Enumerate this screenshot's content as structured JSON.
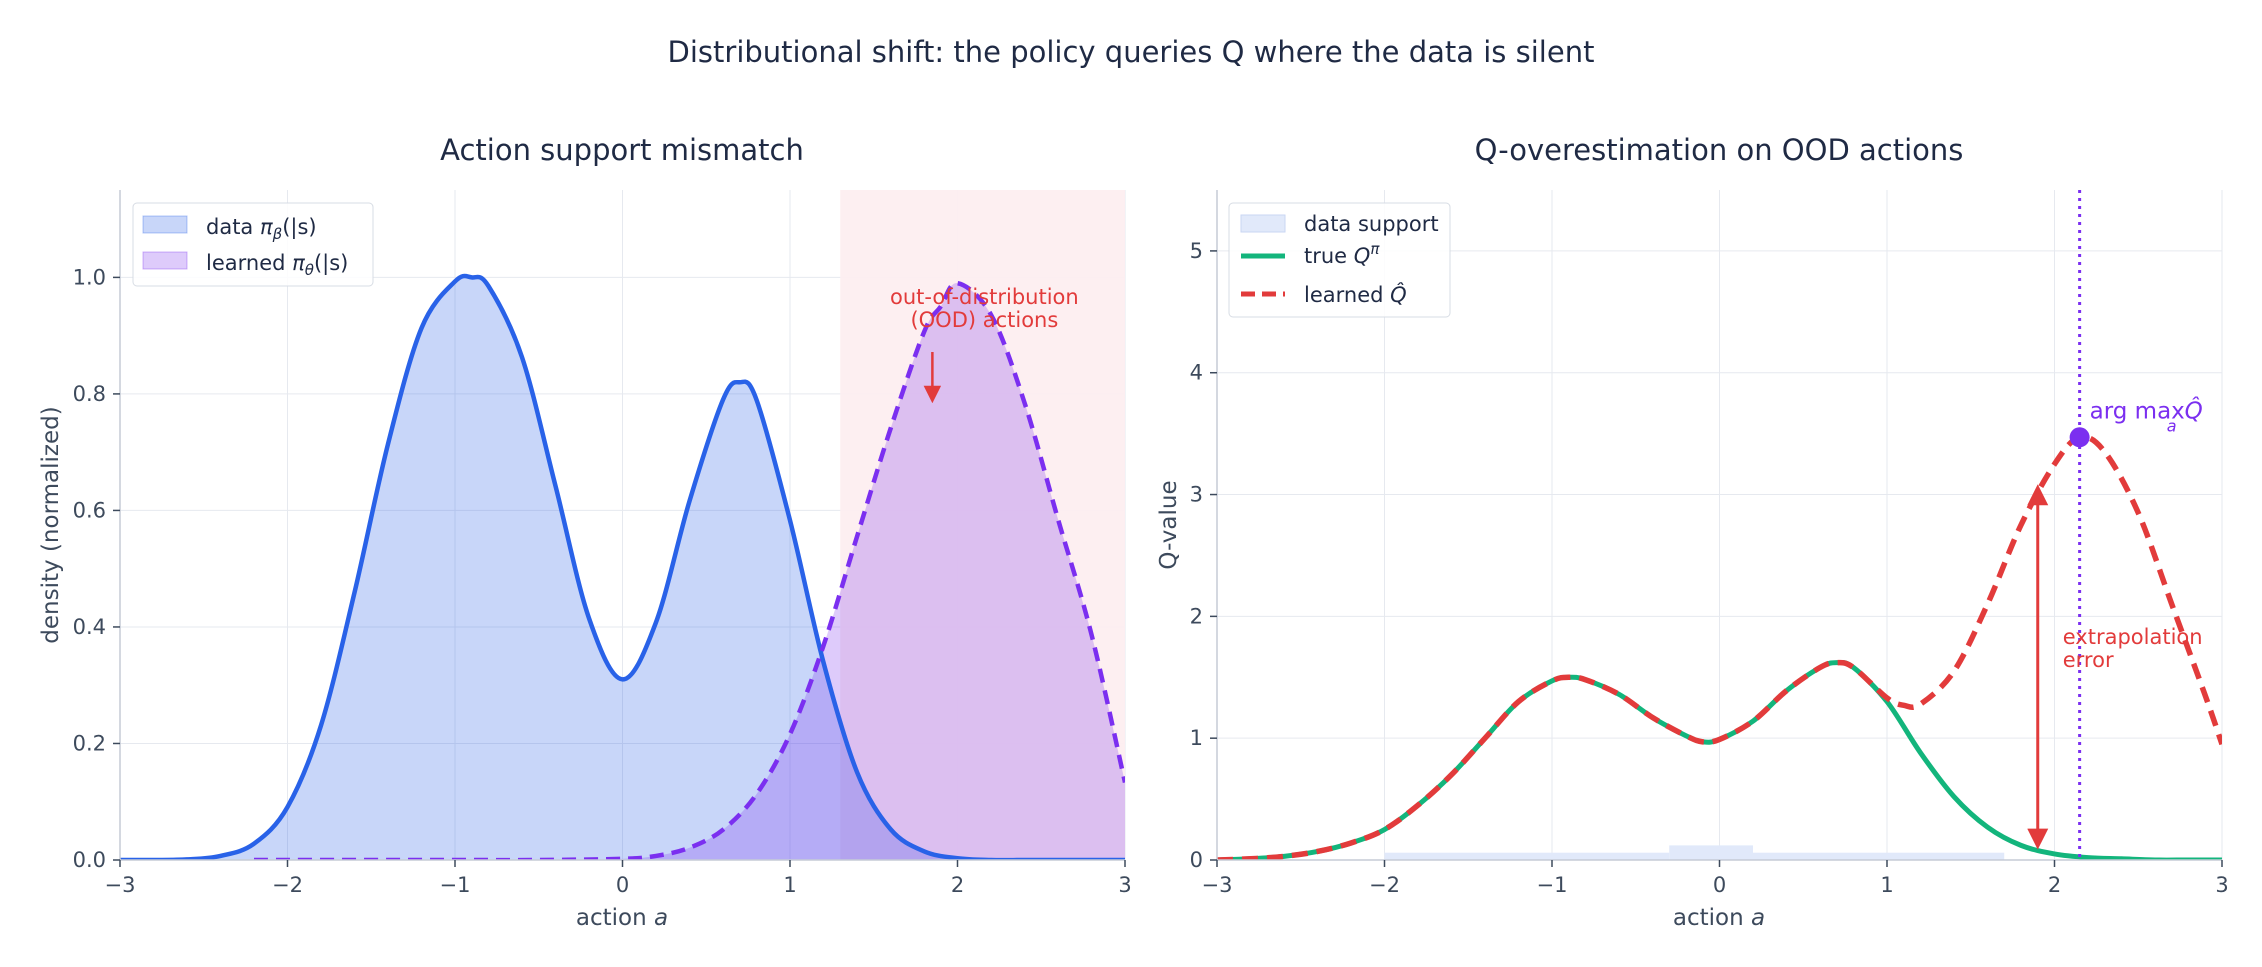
{
  "figure": {
    "title": "Distributional shift: the policy queries Q where the data is silent",
    "colors": {
      "data": "#2962e8",
      "data_fill": "#c7d5f6",
      "learned": "#7b2ff0",
      "learned_fill": "#c9a8ef",
      "ood_region": "#fdeef0",
      "true_q": "#13b57c",
      "learned_q": "#e23b3b",
      "support_fill": "#e1e9fa",
      "argmax": "#7b2ff0"
    }
  },
  "chart_data": [
    {
      "type": "area",
      "title": "Action support mismatch",
      "xlabel": "action a",
      "ylabel": "density (normalized)",
      "xlim": [
        -3,
        3
      ],
      "ylim": [
        0,
        1.15
      ],
      "xticks": [
        -3,
        -2,
        -1,
        0,
        1,
        2,
        3
      ],
      "xtick_labels": [
        "−3",
        "−2",
        "−1",
        "0",
        "1",
        "2",
        "3"
      ],
      "yticks": [
        0,
        0.2,
        0.4,
        0.6,
        0.8,
        1.0
      ],
      "ytick_labels": [
        "0.0",
        "0.2",
        "0.4",
        "0.6",
        "0.8",
        "1.0"
      ],
      "grid": true,
      "legend_placement": "top-left",
      "ood_region": {
        "x_from": 1.3,
        "x_to": 3.0
      },
      "series": [
        {
          "name": "data πβ(a|s)",
          "style": "solid-filled",
          "x": [
            -3.0,
            -2.8,
            -2.6,
            -2.4,
            -2.2,
            -2.0,
            -1.8,
            -1.6,
            -1.4,
            -1.2,
            -1.0,
            -0.9,
            -0.8,
            -0.6,
            -0.4,
            -0.2,
            0.0,
            0.2,
            0.4,
            0.6,
            0.7,
            0.8,
            1.0,
            1.2,
            1.4,
            1.6,
            1.8,
            2.0,
            2.2,
            2.4,
            2.6,
            2.8,
            3.0
          ],
          "y": [
            0.0,
            0.0,
            0.001,
            0.007,
            0.028,
            0.091,
            0.231,
            0.459,
            0.714,
            0.913,
            0.993,
            1.0,
            0.985,
            0.863,
            0.642,
            0.415,
            0.31,
            0.408,
            0.616,
            0.79,
            0.82,
            0.79,
            0.583,
            0.339,
            0.151,
            0.053,
            0.015,
            0.003,
            0.0,
            0.0,
            0.0,
            0.0,
            0.0
          ]
        },
        {
          "name": "learned πθ(a|s)",
          "style": "dashed-filled",
          "x": [
            -2.2,
            -1.5,
            -1.0,
            -0.5,
            0.0,
            0.2,
            0.4,
            0.6,
            0.8,
            1.0,
            1.2,
            1.4,
            1.6,
            1.8,
            1.9,
            2.0,
            2.2,
            2.4,
            2.6,
            2.8,
            3.0
          ],
          "y": [
            0.0,
            0.0,
            0.0,
            0.0,
            0.002,
            0.007,
            0.021,
            0.052,
            0.113,
            0.216,
            0.368,
            0.555,
            0.74,
            0.906,
            0.95,
            0.99,
            0.936,
            0.785,
            0.585,
            0.387,
            0.133
          ]
        }
      ],
      "annotations": [
        {
          "text_lines": [
            "out-of-distribution",
            "(OOD) actions"
          ],
          "arrow_to": [
            1.85,
            0.79
          ]
        }
      ]
    },
    {
      "type": "line",
      "title": "Q-overestimation on OOD actions",
      "xlabel": "action a",
      "ylabel": "Q-value",
      "xlim": [
        -3,
        3
      ],
      "ylim": [
        0,
        5.5
      ],
      "xticks": [
        -3,
        -2,
        -1,
        0,
        1,
        2,
        3
      ],
      "xtick_labels": [
        "−3",
        "−2",
        "−1",
        "0",
        "1",
        "2",
        "3"
      ],
      "yticks": [
        0,
        1,
        2,
        3,
        4,
        5
      ],
      "ytick_labels": [
        "0",
        "1",
        "2",
        "3",
        "4",
        "5"
      ],
      "grid": true,
      "legend_placement": "top-left",
      "data_support": {
        "name": "data support",
        "bars": [
          {
            "x_from": -2.0,
            "x_to": -0.3,
            "height": 0.06
          },
          {
            "x_from": -0.3,
            "x_to": 0.2,
            "height": 0.12
          },
          {
            "x_from": 0.2,
            "x_to": 1.7,
            "height": 0.06
          }
        ]
      },
      "series": [
        {
          "name": "true Qπ",
          "style": "solid",
          "x": [
            -3.0,
            -2.8,
            -2.6,
            -2.4,
            -2.2,
            -2.0,
            -1.8,
            -1.6,
            -1.4,
            -1.2,
            -1.0,
            -0.9,
            -0.8,
            -0.6,
            -0.4,
            -0.2,
            -0.1,
            0.0,
            0.2,
            0.4,
            0.6,
            0.7,
            0.8,
            1.0,
            1.2,
            1.4,
            1.6,
            1.8,
            2.0,
            2.2,
            2.4,
            2.6,
            2.8,
            3.0
          ],
          "y": [
            0.0,
            0.01,
            0.03,
            0.07,
            0.14,
            0.25,
            0.45,
            0.7,
            1.0,
            1.3,
            1.47,
            1.5,
            1.48,
            1.36,
            1.17,
            1.02,
            0.97,
            0.99,
            1.14,
            1.39,
            1.58,
            1.62,
            1.58,
            1.3,
            0.88,
            0.52,
            0.27,
            0.12,
            0.05,
            0.02,
            0.01,
            0.0,
            0.0,
            0.0
          ]
        },
        {
          "name": "learned Q̂",
          "style": "dashed",
          "x": [
            -3.0,
            -2.8,
            -2.6,
            -2.4,
            -2.2,
            -2.0,
            -1.8,
            -1.6,
            -1.4,
            -1.2,
            -1.0,
            -0.9,
            -0.8,
            -0.6,
            -0.4,
            -0.2,
            -0.1,
            0.0,
            0.2,
            0.4,
            0.6,
            0.7,
            0.8,
            1.0,
            1.1,
            1.2,
            1.4,
            1.6,
            1.8,
            2.0,
            2.15,
            2.3,
            2.5,
            2.7,
            2.9,
            3.0
          ],
          "y": [
            0.0,
            0.01,
            0.03,
            0.07,
            0.14,
            0.25,
            0.45,
            0.7,
            1.0,
            1.3,
            1.47,
            1.5,
            1.48,
            1.36,
            1.17,
            1.02,
            0.97,
            0.99,
            1.14,
            1.39,
            1.58,
            1.62,
            1.58,
            1.33,
            1.27,
            1.28,
            1.55,
            2.1,
            2.75,
            3.25,
            3.47,
            3.35,
            2.85,
            2.1,
            1.35,
            0.95
          ]
        }
      ],
      "argmax": {
        "label": "arg max",
        "label_sub": "a",
        "label_var": "Q̂",
        "x": 2.15,
        "y": 3.47
      },
      "annotations": [
        {
          "text_lines": [
            "extrapolation",
            "error"
          ],
          "arrow_x": 1.9,
          "arrow_y_from": 3.05,
          "arrow_y_to": 0.12
        }
      ]
    }
  ]
}
